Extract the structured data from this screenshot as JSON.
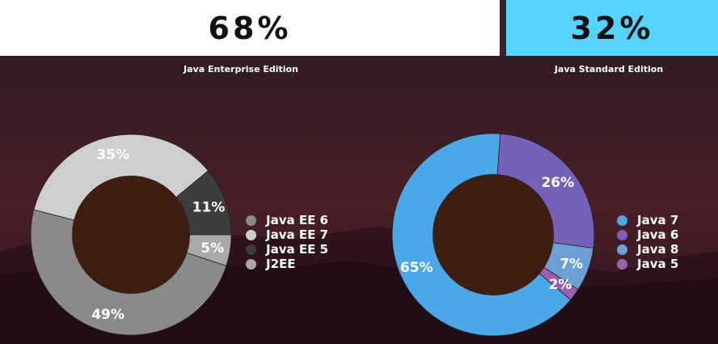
{
  "summary": {
    "left_percent": "68%",
    "right_percent": "32%",
    "left_color": "#ffffff",
    "right_color": "#55d4ff"
  },
  "chart_data": [
    {
      "type": "pie",
      "title": "Java Enterprise Edition",
      "donut": true,
      "center_color": "#3e1d12",
      "legend_position": "right",
      "slices": [
        {
          "label": "Java EE 6",
          "value": 49,
          "display": "49%",
          "color": "#8a8a8a"
        },
        {
          "label": "Java EE 7",
          "value": 35,
          "display": "35%",
          "color": "#cecece"
        },
        {
          "label": "Java EE 5",
          "value": 11,
          "display": "11%",
          "color": "#3d3d3d"
        },
        {
          "label": "J2EE",
          "value": 5,
          "display": "5%",
          "color": "#a9a9a9"
        }
      ]
    },
    {
      "type": "pie",
      "title": "Java Standard Edition",
      "donut": true,
      "center_color": "#3e1d12",
      "legend_position": "right",
      "slices": [
        {
          "label": "Java 7",
          "value": 65,
          "display": "65%",
          "color": "#4ba8e6"
        },
        {
          "label": "Java 6",
          "value": 26,
          "display": "26%",
          "color": "#7561b8"
        },
        {
          "label": "Java 8",
          "value": 7,
          "display": "7%",
          "color": "#6c9fd6"
        },
        {
          "label": "Java 5",
          "value": 2,
          "display": "2%",
          "color": "#9d5fb0"
        }
      ]
    }
  ]
}
